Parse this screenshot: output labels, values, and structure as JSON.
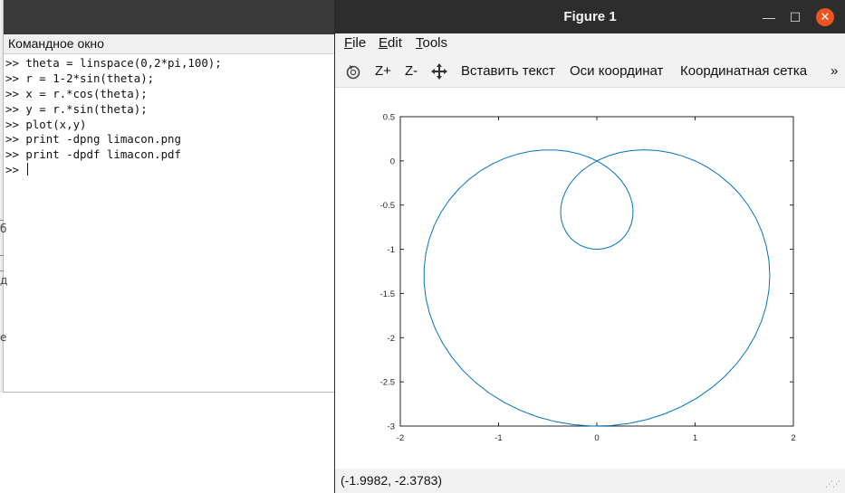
{
  "command_window": {
    "title": "Командное окно",
    "lines": [
      ">> theta = linspace(0,2*pi,100);",
      ">> r = 1-2*sin(theta);",
      ">> x = r.*cos(theta);",
      ">> y = r.*sin(theta);",
      ">> plot(x,y)",
      ">> print -dpng limacon.png",
      ">> print -dpdf limacon.pdf"
    ],
    "prompt": ">> ",
    "edge_glyphs": [
      "б",
      "д",
      "е"
    ]
  },
  "figure_window": {
    "title": "Figure 1",
    "window_controls": {
      "minimize": "—",
      "maximize": "☐",
      "close": "✕"
    },
    "menu": [
      {
        "label": "File",
        "accel": "F",
        "rest": "ile"
      },
      {
        "label": "Edit",
        "accel": "E",
        "rest": "dit"
      },
      {
        "label": "Tools",
        "accel": "T",
        "rest": "ools"
      }
    ],
    "toolbar": {
      "rotate_icon": "rotate-icon",
      "zoom_in": "Z+",
      "zoom_out": "Z-",
      "pan_icon": "pan-move-icon",
      "insert_text": "Вставить текст",
      "axes": "Оси координат",
      "grid": "Координатная сетка",
      "overflow": "»"
    },
    "status": "(-1.9982, -2.3783)",
    "colors": {
      "line": "#0072bd",
      "titlebar": "#2d2d2d",
      "close": "#e95420"
    }
  },
  "chart_data": {
    "type": "line",
    "title": "",
    "xlabel": "",
    "ylabel": "",
    "xlim": [
      -2,
      2
    ],
    "ylim": [
      -3,
      0.5
    ],
    "xticks": [
      -2,
      -1,
      0,
      1,
      2
    ],
    "xtick_labels": [
      "-2",
      "-1",
      "0",
      "1",
      "2"
    ],
    "yticks": [
      0.5,
      0,
      -0.5,
      -1,
      -1.5,
      -2,
      -2.5,
      -3
    ],
    "ytick_labels": [
      "0.5",
      "0",
      "-0.5",
      "-1",
      "-1.5",
      "-2",
      "-2.5",
      "-3"
    ],
    "grid": false,
    "series": [
      {
        "color": "#0072bd",
        "equation": "r = 1-2*sin(theta), x = r.*cos(theta), y = r.*sin(theta)",
        "theta_range": [
          0,
          6.283185307179586
        ],
        "n_points": 100
      }
    ]
  }
}
